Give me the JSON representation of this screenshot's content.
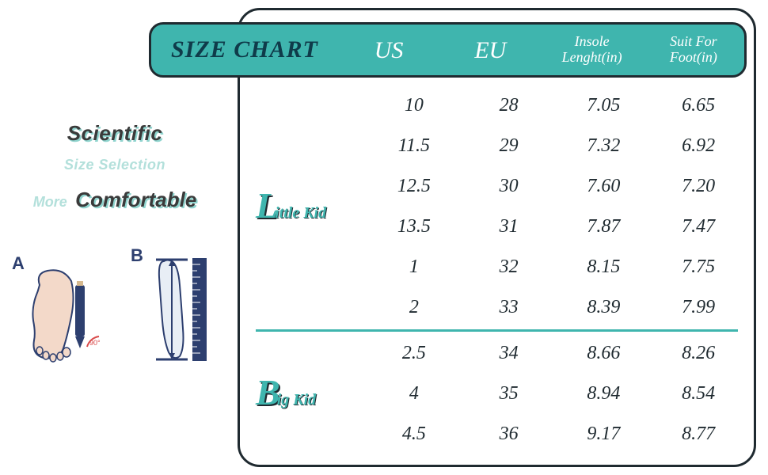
{
  "colors": {
    "teal": "#3fb5ae",
    "dark": "#1f2a30",
    "shadow_teal": "#8fd4ce",
    "pale_teal": "#b3e0db",
    "navy": "#2d3f6f",
    "white": "#ffffff"
  },
  "tagline": {
    "line1_bold": "Scientific",
    "line2_teal": "Size Selection",
    "line3_more": "More",
    "line3_bold": "Comfortable"
  },
  "diagram": {
    "label_a": "A",
    "label_b": "B",
    "angle": "90°"
  },
  "chart": {
    "title": "SIZE CHART",
    "columns": [
      {
        "label": "US",
        "size": "big"
      },
      {
        "label": "EU",
        "size": "big"
      },
      {
        "label_line1": "Insole",
        "label_line2": "Lenght(in)",
        "size": "small"
      },
      {
        "label_line1": "Suit For",
        "label_line2": "Foot(in)",
        "size": "small"
      }
    ],
    "sections": [
      {
        "label_cap": "L",
        "label_rest": "ittle Kid",
        "rows": [
          [
            "10",
            "28",
            "7.05",
            "6.65"
          ],
          [
            "11.5",
            "29",
            "7.32",
            "6.92"
          ],
          [
            "12.5",
            "30",
            "7.60",
            "7.20"
          ],
          [
            "13.5",
            "31",
            "7.87",
            "7.47"
          ],
          [
            "1",
            "32",
            "8.15",
            "7.75"
          ],
          [
            "2",
            "33",
            "8.39",
            "7.99"
          ]
        ]
      },
      {
        "label_cap": "B",
        "label_rest": "ig Kid",
        "rows": [
          [
            "2.5",
            "34",
            "8.66",
            "8.26"
          ],
          [
            "4",
            "35",
            "8.94",
            "8.54"
          ],
          [
            "4.5",
            "36",
            "9.17",
            "8.77"
          ]
        ]
      }
    ]
  }
}
